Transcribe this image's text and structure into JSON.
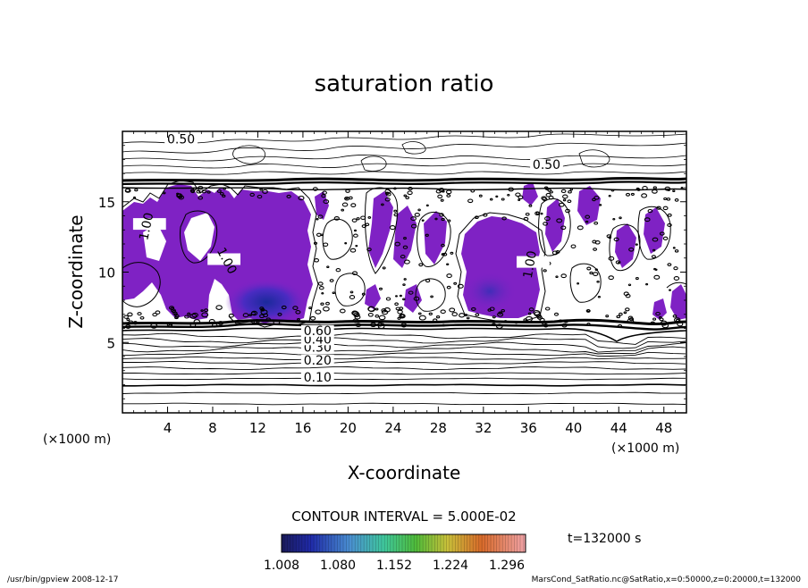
{
  "app": {
    "tool_footer": "/usr/bin/gpview   2008-12-17",
    "source_footer": "MarsCond_SatRatio.nc@SatRatio,x=0:50000,z=0:20000,t=132000"
  },
  "chart_data": {
    "type": "contour",
    "title": "saturation ratio",
    "xlabel": "X-coordinate",
    "ylabel": "Z-coordinate",
    "x_unit": "(×1000 m)",
    "y_unit": "(×1000 m)",
    "x_ticks": [
      "4",
      "8",
      "12",
      "16",
      "20",
      "24",
      "28",
      "32",
      "36",
      "40",
      "44",
      "48"
    ],
    "y_ticks": [
      "5",
      "10",
      "15"
    ],
    "xlim": [
      0,
      50
    ],
    "ylim": [
      0,
      20
    ],
    "contour_interval_label": "CONTOUR INTERVAL = 5.000E-02",
    "time_label": "t=132000 s",
    "colorbar_ticks": [
      "1.008",
      "1.080",
      "1.152",
      "1.224",
      "1.296"
    ],
    "colorbar_range": [
      1.008,
      1.32
    ],
    "contour_labels": [
      {
        "text": "0.50",
        "x": 5.2,
        "z": 19.2
      },
      {
        "text": "0.50",
        "x": 37.6,
        "z": 17.4
      },
      {
        "text": "0.10",
        "x": 17.3,
        "z": 2.3
      },
      {
        "text": "0.20",
        "x": 17.3,
        "z": 3.5
      },
      {
        "text": "0.30",
        "x": 17.3,
        "z": 4.4
      },
      {
        "text": "0.40",
        "x": 17.3,
        "z": 5.0
      },
      {
        "text": "0.60",
        "x": 17.3,
        "z": 5.6
      },
      {
        "text": "1.00",
        "x": 2.4,
        "z": 13.2
      },
      {
        "text": "1.00",
        "x": 9.0,
        "z": 10.7
      },
      {
        "text": "1.00",
        "x": 36.4,
        "z": 10.5
      }
    ],
    "colors": {
      "fill_main": "#7f22c4",
      "fill_deep": "#3b1fb8",
      "line": "#000000",
      "frame": "#000000",
      "background": "#ffffff"
    }
  }
}
